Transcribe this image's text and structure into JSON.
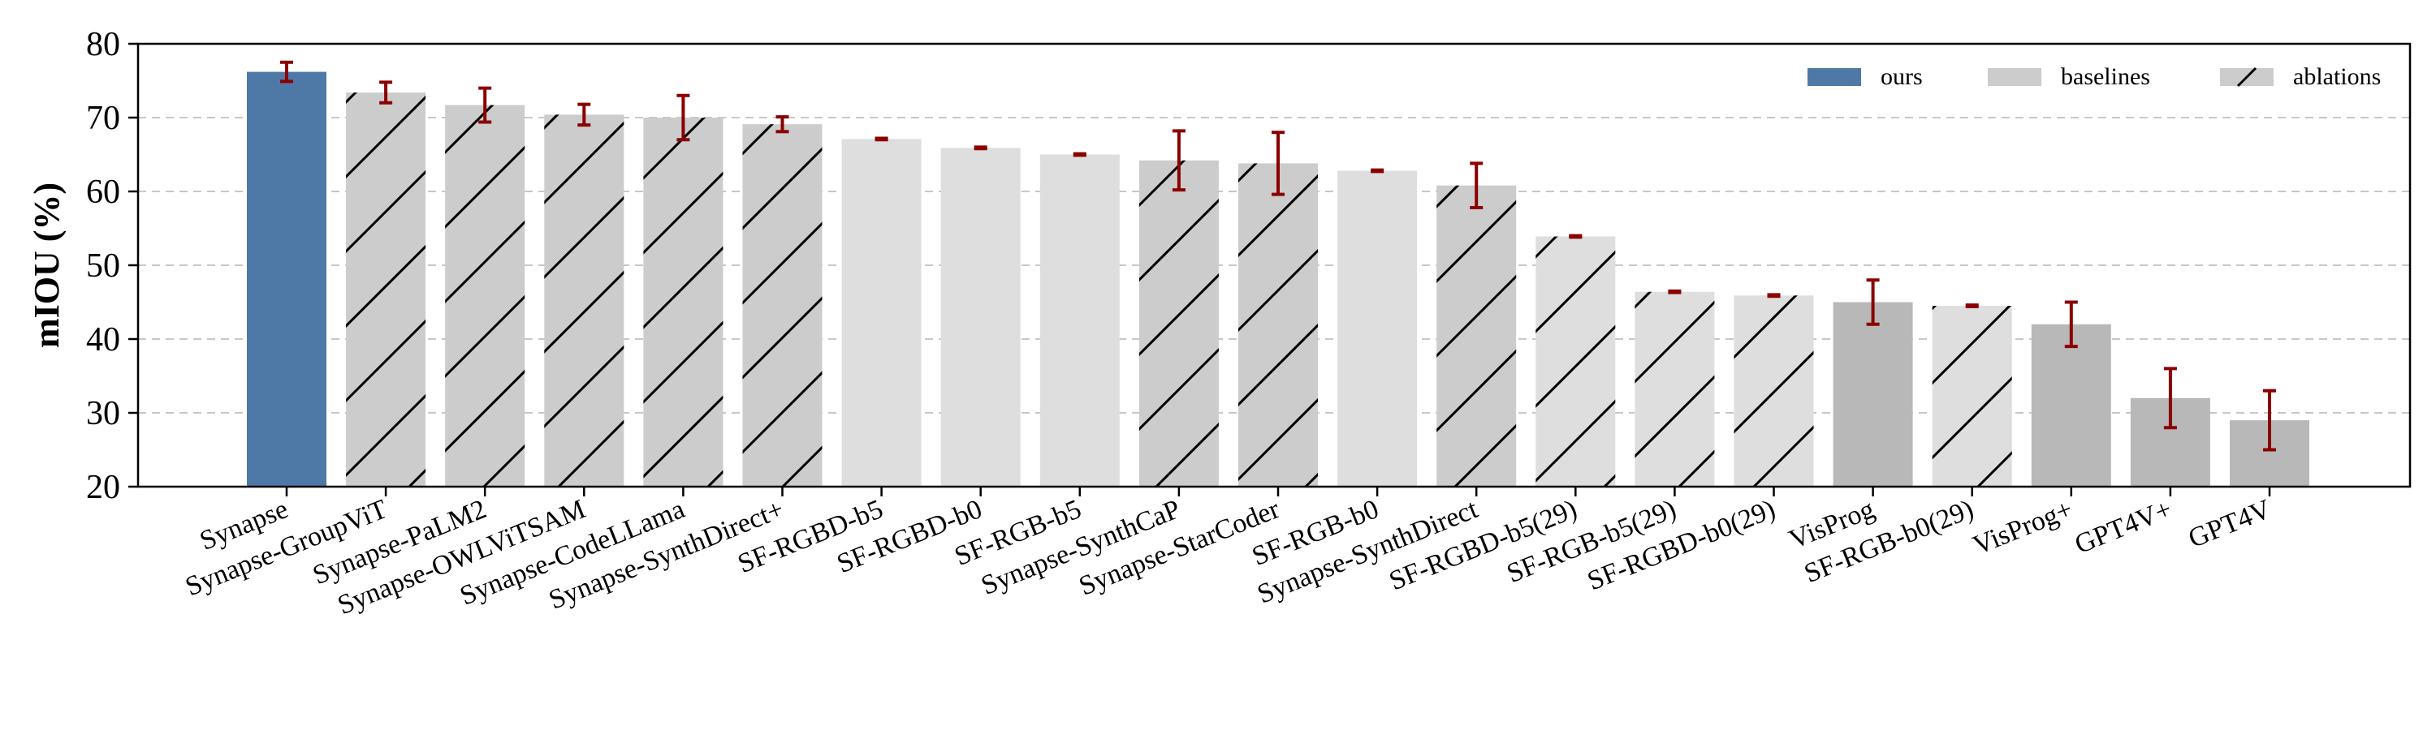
{
  "chart_data": {
    "type": "bar",
    "title": "",
    "xlabel": "",
    "ylabel": "mIOU (%)",
    "ylim": [
      20,
      80
    ],
    "yticks": [
      20,
      30,
      40,
      50,
      60,
      70,
      80
    ],
    "grid": "horizontal dashed",
    "legend_position": "top-right",
    "legend": [
      {
        "key": "ours",
        "label": "ours"
      },
      {
        "key": "baselines",
        "label": "baselines"
      },
      {
        "key": "ablations",
        "label": "ablations"
      }
    ],
    "colors": {
      "ours": "#4e79a7",
      "ablation": "#cccccc",
      "baseline_light": "#dedede",
      "baseline_dark": "#b8b8b8",
      "error": "#8b0000",
      "grid": "#c8c8c8",
      "hatch": "#000000"
    },
    "categories": [
      "Synapse",
      "Synapse-GroupViT",
      "Synapse-PaLM2",
      "Synapse-OWLViTSAM",
      "Synapse-CodeLLama",
      "Synapse-SynthDirect+",
      "SF-RGBD-b5",
      "SF-RGBD-b0",
      "SF-RGB-b5",
      "Synapse-SynthCaP",
      "Synapse-StarCoder",
      "SF-RGB-b0",
      "Synapse-SynthDirect",
      "SF-RGBD-b5(29)",
      "SF-RGB-b5(29)",
      "SF-RGBD-b0(29)",
      "VisProg",
      "SF-RGB-b0(29)",
      "VisProg+",
      "GPT4V+",
      "GPT4V"
    ],
    "values": [
      76.2,
      73.4,
      71.7,
      70.4,
      70.0,
      69.1,
      67.1,
      65.9,
      65.0,
      64.2,
      63.8,
      62.8,
      60.8,
      53.9,
      46.4,
      45.9,
      45.0,
      44.5,
      42.0,
      32.0,
      29.0
    ],
    "errors": [
      1.3,
      1.4,
      2.3,
      1.4,
      3.0,
      1.0,
      0.1,
      0.1,
      0.1,
      4.0,
      4.2,
      0.1,
      3.0,
      0.1,
      0.1,
      0.1,
      3.0,
      0.1,
      3.0,
      4.0,
      4.0
    ],
    "groups": [
      "ours",
      "ablations",
      "ablations",
      "ablations",
      "ablations",
      "ablations",
      "baselines",
      "baselines",
      "baselines",
      "ablations",
      "ablations",
      "baselines",
      "ablations",
      "ablations",
      "ablations",
      "ablations",
      "baselines",
      "ablations",
      "baselines",
      "baselines",
      "baselines"
    ],
    "fills": [
      "ours",
      "ablation",
      "ablation",
      "ablation",
      "ablation",
      "ablation",
      "baseline_light",
      "baseline_light",
      "baseline_light",
      "ablation",
      "ablation",
      "baseline_light",
      "ablation",
      "baseline_light",
      "baseline_light",
      "baseline_light",
      "baseline_dark",
      "baseline_light",
      "baseline_dark",
      "baseline_dark",
      "baseline_dark"
    ]
  }
}
